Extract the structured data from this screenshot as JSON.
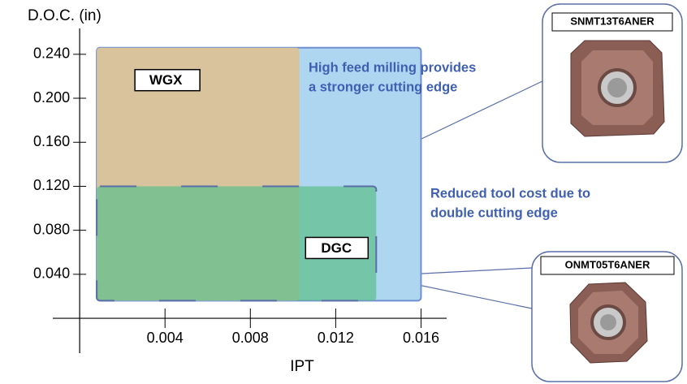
{
  "chart_data": {
    "type": "region",
    "x_label": "IPT",
    "y_label": "D.O.C. (in)",
    "xlim": [
      -0.00126,
      0.0172
    ],
    "ylim": [
      -0.0317,
      0.2635
    ],
    "xticks": [
      0.004,
      0.008,
      0.012,
      0.016
    ],
    "yticks": [
      {
        "value": 0.04,
        "label": "0.040"
      },
      {
        "value": 0.08,
        "label": "0.080"
      },
      {
        "value": 0.12,
        "label": "0.120"
      },
      {
        "value": 0.16,
        "label": "0.160"
      },
      {
        "value": 0.2,
        "label": "0.200"
      },
      {
        "value": 0.24,
        "label": "0.240"
      }
    ],
    "regions": [
      {
        "x": [
          0.0008,
          0.016
        ],
        "y": [
          0.016,
          0.246
        ],
        "color": "#aed6f1"
      },
      {
        "name": "WGX",
        "x": [
          0.0008,
          0.0103
        ],
        "y": [
          0.016,
          0.246
        ],
        "color": "#d8c39c"
      },
      {
        "name": "DGC",
        "x": [
          0.0008,
          0.0139
        ],
        "y": [
          0.016,
          0.12
        ],
        "color": "#5fbf8c"
      }
    ],
    "annotations": [
      [
        "High feed milling provides",
        "a stronger cutting edge"
      ],
      [
        "Reduced tool cost due to",
        "double cutting edge"
      ]
    ],
    "inserts": [
      "SNMT13T6ANER",
      "ONMT05T6ANER"
    ]
  }
}
